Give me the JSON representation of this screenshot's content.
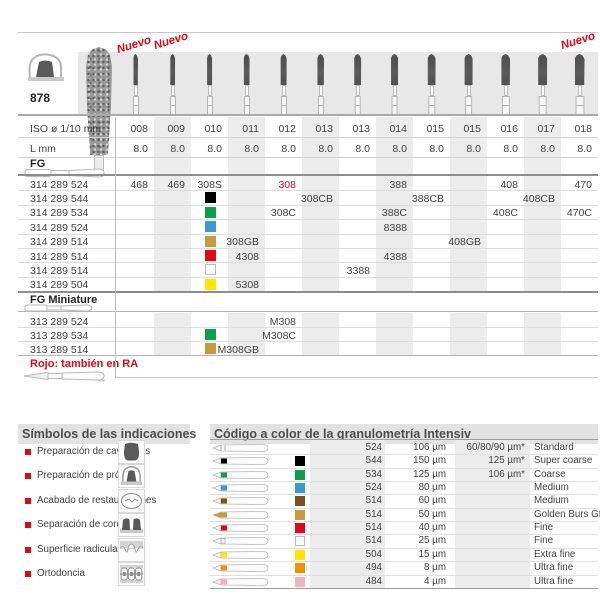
{
  "product": {
    "series": "878",
    "new_label": "Nuevo",
    "new_columns": [
      0,
      1,
      12
    ]
  },
  "colors": {
    "accent_red": "#e30613",
    "stripe_gray": "#ececec"
  },
  "table": {
    "iso_label": "ISO ø 1/10 mm",
    "l_label": "L mm",
    "fg_label": "FG",
    "fg_miniature_label": "FG Miniature",
    "rojo_note": "Rojo: también en RA",
    "iso_values": [
      "008",
      "009",
      "010",
      "011",
      "012",
      "013",
      "013",
      "014",
      "015",
      "015",
      "016",
      "017",
      "018"
    ],
    "l_values": [
      "8.0",
      "8.0",
      "8.0",
      "8.0",
      "8.0",
      "8.0",
      "8.0",
      "8.0",
      "8.0",
      "8.0",
      "8.0",
      "8.0",
      "8.0"
    ],
    "fg_rows": [
      {
        "code": "314 289 524",
        "color": null,
        "red_index": 4,
        "cells": [
          "468",
          "469",
          "308S",
          "",
          "308",
          "",
          "",
          "388",
          "",
          "",
          "408",
          "",
          "470"
        ]
      },
      {
        "code": "314 289 544",
        "color": "#000000",
        "red_index": null,
        "cells": [
          "",
          "",
          "",
          "",
          "",
          "308CB",
          "",
          "",
          "388CB",
          "",
          "",
          "408CB",
          ""
        ]
      },
      {
        "code": "314 289 534",
        "color": "#0aa14a",
        "red_index": null,
        "cells": [
          "",
          "",
          "",
          "",
          "308C",
          "",
          "",
          "388C",
          "",
          "",
          "408C",
          "",
          "470C"
        ]
      },
      {
        "code": "314 289 524",
        "color": "#3d97d3",
        "red_index": null,
        "cells": [
          "",
          "",
          "",
          "",
          "",
          "",
          "",
          "8388",
          "",
          "",
          "",
          "",
          ""
        ]
      },
      {
        "code": "314 289 514",
        "color": "#c9993f",
        "red_index": null,
        "cells": [
          "",
          "",
          "",
          "308GB",
          "",
          "",
          "",
          "",
          "",
          "408GB",
          "",
          "",
          ""
        ]
      },
      {
        "code": "314 289 514",
        "color": "#e30613",
        "red_index": null,
        "cells": [
          "",
          "",
          "",
          "4308",
          "",
          "",
          "",
          "4388",
          "",
          "",
          "",
          "",
          ""
        ]
      },
      {
        "code": "314 289 514",
        "color": "#ffffff",
        "red_index": null,
        "cells": [
          "",
          "",
          "",
          "",
          "",
          "",
          "3388",
          "",
          "",
          "",
          "",
          "",
          ""
        ]
      },
      {
        "code": "314 289 504",
        "color": "#ffe500",
        "red_index": null,
        "cells": [
          "",
          "",
          "",
          "5308",
          "",
          "",
          "",
          "",
          "",
          "",
          "",
          "",
          ""
        ]
      }
    ],
    "miniature_rows": [
      {
        "code": "313 289 524",
        "color": null,
        "red_index": null,
        "cells": [
          "",
          "",
          "",
          "",
          "M308",
          "",
          "",
          "",
          "",
          "",
          "",
          "",
          ""
        ]
      },
      {
        "code": "313 289 534",
        "color": "#0aa14a",
        "red_index": null,
        "cells": [
          "",
          "",
          "",
          "",
          "M308C",
          "",
          "",
          "",
          "",
          "",
          "",
          "",
          ""
        ]
      },
      {
        "code": "313 289 514",
        "color": "#c9993f",
        "red_index": null,
        "cells": [
          "",
          "",
          "",
          "M308GB",
          "",
          "",
          "",
          "",
          "",
          "",
          "",
          "",
          ""
        ]
      }
    ]
  },
  "symbols_panel": {
    "title": "Símbolos de las indicaciones",
    "items": [
      {
        "label": "Preparación de cavidades",
        "icon": "cavity-preparation-icon"
      },
      {
        "label": "Preparación de prótesis",
        "icon": "prosthesis-preparation-icon"
      },
      {
        "label": "Acabado de restauraciones",
        "icon": "restoration-finishing-icon"
      },
      {
        "label": "Separación de coronas",
        "icon": "crown-separation-icon"
      },
      {
        "label": "Superficie radicular",
        "icon": "root-surface-icon"
      },
      {
        "label": "Ortodoncia",
        "icon": "orthodontics-icon"
      }
    ]
  },
  "grit_panel": {
    "title": "Código a color de la granulometría Intensiv",
    "rows": [
      {
        "color": null,
        "code": "524",
        "grit": "106 µm",
        "alt": "60/80/90 µm*",
        "name": "Standard"
      },
      {
        "color": "#000000",
        "code": "544",
        "grit": "150 µm",
        "alt": "125 µm*",
        "name": "Super coarse"
      },
      {
        "color": "#0aa14a",
        "code": "534",
        "grit": "125 µm",
        "alt": "106 µm*",
        "name": "Coarse"
      },
      {
        "color": "#3d97d3",
        "code": "524",
        "grit": "80 µm",
        "alt": "",
        "name": "Medium"
      },
      {
        "color": "#7c4f23",
        "code": "514",
        "grit": "60 µm",
        "alt": "",
        "name": "Medium"
      },
      {
        "color": "#c9993f",
        "code": "514",
        "grit": "50 µm",
        "alt": "",
        "name": "Golden Burs GB"
      },
      {
        "color": "#e30613",
        "code": "514",
        "grit": "40 µm",
        "alt": "",
        "name": "Fine"
      },
      {
        "color": "#ffffff",
        "code": "514",
        "grit": "25 µm",
        "alt": "",
        "name": "Fine"
      },
      {
        "color": "#ffe500",
        "code": "504",
        "grit": "15 µm",
        "alt": "",
        "name": "Extra fine"
      },
      {
        "color": "#f39200",
        "code": "494",
        "grit": "8 µm",
        "alt": "",
        "name": "Ultra fine"
      },
      {
        "color": "#f4b2c1",
        "code": "484",
        "grit": "4 µm",
        "alt": "",
        "name": "Ultra fine"
      }
    ]
  }
}
